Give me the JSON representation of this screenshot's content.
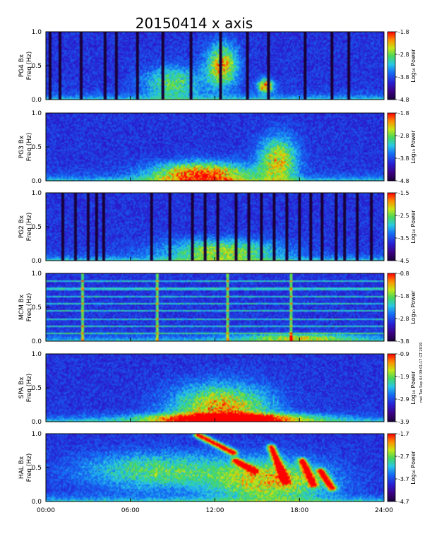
{
  "title": "20150414 x axis",
  "side_note": "mei Tue Sep 04 09:01:17 GT 2019",
  "chart_data": [
    {
      "type": "heatmap",
      "station": "PG4",
      "ylabel_line1": "PG4 Bx",
      "ylabel_line2": "Freq (Hz)",
      "colorbar_label": "Log₁₀ Power",
      "cb_ticks": [
        "-1.8",
        "-2.8",
        "-3.8",
        "-4.8"
      ],
      "cb_range": [
        -4.8,
        -1.8
      ],
      "yticks": [
        "1.0",
        "0.5",
        "0.0"
      ],
      "ylim": [
        0,
        1.0
      ],
      "xlim": [
        0,
        24
      ],
      "data_gap_hours": [
        0.3,
        1.0,
        2.5,
        4.2,
        5.0,
        6.5,
        8.3,
        10.3,
        12.4,
        14.3,
        15.8,
        18.4,
        20.3,
        21.5
      ],
      "enhancements": [
        {
          "t": 12.5,
          "f": 0.5,
          "w": 1.6,
          "h": 0.45,
          "level": 0.55
        },
        {
          "t": 15.6,
          "f": 0.2,
          "w": 0.8,
          "h": 0.15,
          "level": 0.65
        },
        {
          "t": 9.0,
          "f": 0.25,
          "w": 3.0,
          "h": 0.35,
          "level": 0.35
        }
      ]
    },
    {
      "type": "heatmap",
      "station": "PG3",
      "ylabel_line1": "PG3 Bx",
      "ylabel_line2": "Freq (Hz)",
      "colorbar_label": "Log₁₀ Power",
      "cb_ticks": [
        "-1.8",
        "-2.8",
        "-3.8",
        "-4.8"
      ],
      "cb_range": [
        -4.8,
        -1.8
      ],
      "yticks": [
        "1.0",
        "0.5",
        "0.0"
      ],
      "ylim": [
        0,
        1.0
      ],
      "xlim": [
        0,
        24
      ],
      "data_gap_hours": [],
      "enhancements": [
        {
          "t": 11.0,
          "f": 0.1,
          "w": 5.0,
          "h": 0.25,
          "level": 0.65
        },
        {
          "t": 16.5,
          "f": 0.3,
          "w": 2.0,
          "h": 0.5,
          "level": 0.5
        }
      ]
    },
    {
      "type": "heatmap",
      "station": "PG2",
      "ylabel_line1": "PG2 Bx",
      "ylabel_line2": "Freq (Hz)",
      "colorbar_label": "Log₁₀ Power",
      "cb_ticks": [
        "-1.5",
        "-2.5",
        "-3.5",
        "-4.5"
      ],
      "cb_range": [
        -4.5,
        -1.5
      ],
      "yticks": [
        "1.0",
        "0.5",
        "0.0"
      ],
      "ylim": [
        0,
        1.0
      ],
      "xlim": [
        0,
        24
      ],
      "data_gap_hours": [
        1.2,
        2.1,
        3.0,
        3.6,
        4.1,
        7.5,
        8.8,
        10.4,
        11.3,
        12.2,
        13.5,
        14.4,
        15.3,
        16.2,
        17.1,
        18.0,
        18.8,
        19.6,
        20.6,
        21.2,
        22.1,
        23.1
      ],
      "enhancements": [
        {
          "t": 12.5,
          "f": 0.15,
          "w": 6.0,
          "h": 0.25,
          "level": 0.4
        }
      ]
    },
    {
      "type": "heatmap",
      "station": "MCM",
      "ylabel_line1": "MCM Bx",
      "ylabel_line2": "Freq (Hz)",
      "colorbar_label": "Log₁₀ Power",
      "cb_ticks": [
        "-0.8",
        "-1.8",
        "-2.8",
        "-3.8"
      ],
      "cb_range": [
        -3.8,
        -0.8
      ],
      "yticks": [
        "1.0",
        "0.5",
        "0.0"
      ],
      "ylim": [
        0,
        1.0
      ],
      "xlim": [
        0,
        24
      ],
      "data_gap_hours": [],
      "harmonic_lines_hz": [
        0.11,
        0.22,
        0.33,
        0.44,
        0.55,
        0.66,
        0.77,
        0.88
      ],
      "spike_hours": [
        2.6,
        7.9,
        12.9,
        17.4
      ],
      "enhancements": [
        {
          "t": 18.0,
          "f": 0.05,
          "w": 6.0,
          "h": 0.08,
          "level": 0.35
        }
      ]
    },
    {
      "type": "heatmap",
      "station": "SPA",
      "ylabel_line1": "SPA Bx",
      "ylabel_line2": "Freq (Hz)",
      "colorbar_label": "Log₁₀ Power",
      "cb_ticks": [
        "-0.9",
        "-1.9",
        "-2.9",
        "-3.9"
      ],
      "cb_range": [
        -3.9,
        -0.9
      ],
      "yticks": [
        "1.0",
        "0.5",
        "0.0"
      ],
      "ylim": [
        0,
        1.0
      ],
      "xlim": [
        0,
        24
      ],
      "data_gap_hours": [],
      "enhancements": [
        {
          "t": 12.5,
          "f": 0.2,
          "w": 5.0,
          "h": 0.5,
          "level": 0.55
        },
        {
          "t": 13.0,
          "f": 0.05,
          "w": 8.0,
          "h": 0.1,
          "level": 0.75
        }
      ]
    },
    {
      "type": "heatmap",
      "station": "HAL",
      "ylabel_line1": "HAL Bx",
      "ylabel_line2": "Freq (Hz)",
      "colorbar_label": "Log₁₀ Power",
      "cb_ticks": [
        "-1.7",
        "-2.7",
        "-3.7",
        "-4.7"
      ],
      "cb_range": [
        -4.7,
        -1.7
      ],
      "yticks": [
        "1.0",
        "0.5",
        "0.0"
      ],
      "ylim": [
        0,
        1.0
      ],
      "xlim": [
        0,
        24
      ],
      "data_gap_hours": [],
      "xticks": [
        "00:00",
        "06:00",
        "12:00",
        "18:00",
        "24:00"
      ],
      "streaks": [
        {
          "t0": 10.8,
          "f0": 0.98,
          "t1": 13.3,
          "f1": 0.72,
          "level": 0.78
        },
        {
          "t0": 13.5,
          "f0": 0.6,
          "t1": 14.8,
          "f1": 0.45,
          "level": 0.75
        },
        {
          "t0": 16.0,
          "f0": 0.8,
          "t1": 17.0,
          "f1": 0.3,
          "level": 0.8
        },
        {
          "t0": 18.2,
          "f0": 0.6,
          "t1": 19.0,
          "f1": 0.25,
          "level": 0.72
        },
        {
          "t0": 19.5,
          "f0": 0.45,
          "t1": 20.3,
          "f1": 0.2,
          "level": 0.7
        }
      ],
      "enhancements": [
        {
          "t": 16.0,
          "f": 0.3,
          "w": 6.0,
          "h": 0.45,
          "level": 0.5
        },
        {
          "t": 8.0,
          "f": 0.45,
          "w": 8.0,
          "h": 0.4,
          "level": 0.35
        }
      ]
    }
  ]
}
